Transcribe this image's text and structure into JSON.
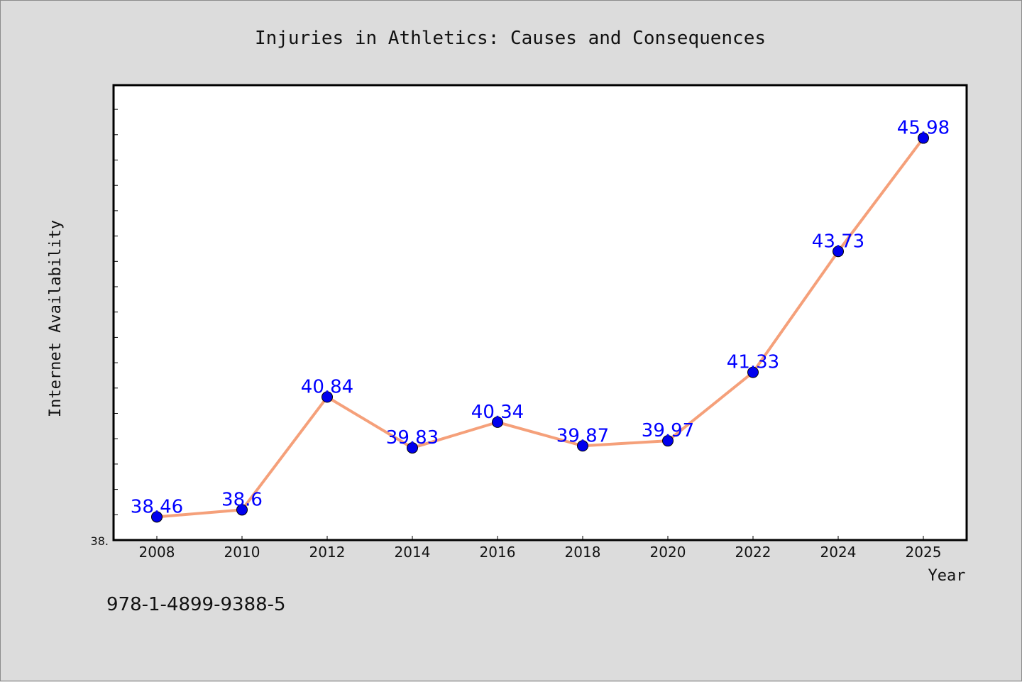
{
  "chart_data": {
    "type": "line",
    "title": "Injuries in Athletics: Causes and Consequences",
    "xlabel": "Year",
    "ylabel": "Internet Availability",
    "categories": [
      "2008",
      "2010",
      "2012",
      "2014",
      "2016",
      "2018",
      "2020",
      "2022",
      "2024",
      "2025"
    ],
    "values": [
      38.46,
      38.6,
      40.84,
      39.83,
      40.34,
      39.87,
      39.97,
      41.33,
      43.73,
      45.98
    ],
    "data_labels": [
      "38.46",
      "38.6",
      "40.84",
      "39.83",
      "40.34",
      "39.87",
      "39.97",
      "41.33",
      "43.73",
      "45.98"
    ],
    "y_tick_label": "38.",
    "ylim": [
      38.0,
      47.03
    ],
    "grid": false,
    "legend": "none",
    "line_color": "#f5a07a",
    "marker_color": "#0000ee",
    "label_color": "#0000ff",
    "plot_background": "#ffffff"
  },
  "footer": {
    "isbn": "978-1-4899-9388-5"
  }
}
